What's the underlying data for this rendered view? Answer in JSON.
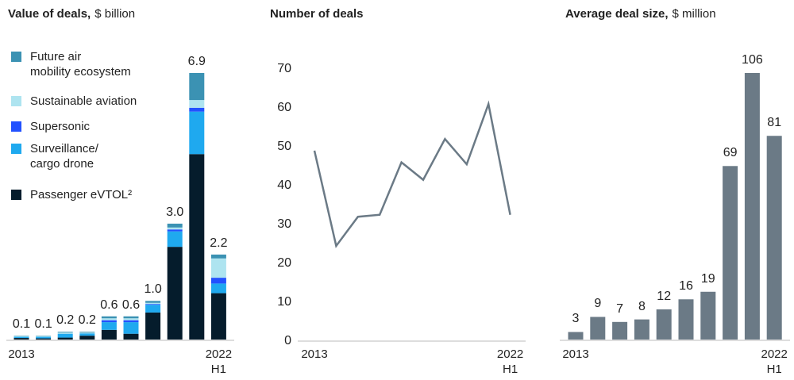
{
  "chart_data": [
    {
      "type": "stacked-bar",
      "title": "Value of deals,",
      "unit": "$ billion",
      "categories": [
        "2013",
        null,
        null,
        null,
        null,
        null,
        null,
        null,
        null,
        "2022\nH1"
      ],
      "series": [
        {
          "name": "Future air\nmobility ecosystem",
          "color": "#3b92b3",
          "values": [
            0.01,
            0.01,
            0.02,
            0.02,
            0.05,
            0.05,
            0.05,
            0.1,
            0.7,
            0.1
          ]
        },
        {
          "name": "Sustainable aviation",
          "color": "#aee4f0",
          "values": [
            0.02,
            0.02,
            0.03,
            0.02,
            0.05,
            0.05,
            0.03,
            0.05,
            0.2,
            0.5
          ]
        },
        {
          "name": "Supersonic",
          "color": "#2251ff",
          "values": [
            0,
            0,
            0,
            0,
            0.05,
            0.05,
            0.02,
            0.05,
            0.1,
            0.15
          ]
        },
        {
          "name": "Surveillance/\ncargo drone",
          "color": "#1fa9ef",
          "values": [
            0.03,
            0.04,
            0.1,
            0.06,
            0.2,
            0.3,
            0.2,
            0.4,
            1.1,
            0.25
          ]
        },
        {
          "name": "Passenger eVTOL²",
          "color": "#051c2c",
          "values": [
            0.04,
            0.03,
            0.05,
            0.1,
            0.25,
            0.15,
            0.7,
            2.4,
            4.8,
            1.2
          ]
        }
      ],
      "totals": [
        0.1,
        0.1,
        0.2,
        0.2,
        0.6,
        0.6,
        1.0,
        3.0,
        6.9,
        2.2
      ],
      "total_labels": [
        "0.1",
        "0.1",
        "0.2",
        "0.2",
        "0.6",
        "0.6",
        "1.0",
        "3.0",
        "6.9",
        "2.2"
      ]
    },
    {
      "type": "line",
      "title": "Number of deals",
      "categories": [
        "2013",
        null,
        null,
        null,
        null,
        null,
        null,
        null,
        null,
        "2022\nH1"
      ],
      "values": [
        49,
        24.5,
        32,
        32.5,
        46,
        41.5,
        52,
        45.5,
        61,
        32.5
      ],
      "color": "#6b7a86",
      "ylim": [
        0,
        70
      ],
      "yticks": [
        0,
        10,
        20,
        30,
        40,
        50,
        60,
        70
      ],
      "grid": false
    },
    {
      "type": "bar",
      "title": "Average deal size,",
      "unit": "$ million",
      "categories": [
        "2013",
        null,
        null,
        null,
        null,
        null,
        null,
        null,
        null,
        "2022\nH1"
      ],
      "values": [
        3,
        9,
        7,
        8,
        12,
        16,
        19,
        69,
        106,
        81
      ],
      "color": "#6b7a86"
    }
  ]
}
